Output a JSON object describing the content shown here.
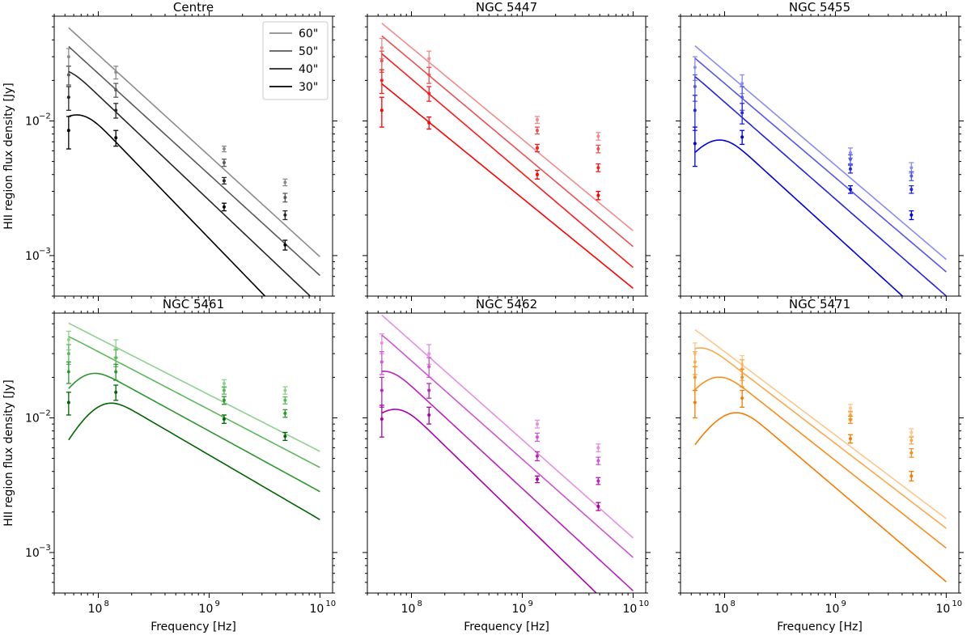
{
  "chart_data": {
    "type": "line",
    "scale": "log-log",
    "xlabel": "Frequency [Hz]",
    "ylabel": "HII region flux density [Jy]",
    "xlim": [
      40000000,
      13000000000
    ],
    "ylim": [
      0.0005,
      0.06
    ],
    "x_ticks": [
      {
        "value": 100000000,
        "mantissa": "10",
        "exp": "8"
      },
      {
        "value": 1000000000,
        "mantissa": "10",
        "exp": "9"
      },
      {
        "value": 10000000000,
        "mantissa": "10",
        "exp": "10"
      }
    ],
    "y_ticks": [
      {
        "value": 0.01,
        "mantissa": "10",
        "exp": "−2"
      },
      {
        "value": 0.001,
        "mantissa": "10",
        "exp": "−3"
      }
    ],
    "obs_frequencies": [
      54000000,
      144000000,
      1365000000,
      4850000000
    ],
    "legend": {
      "location": "upper right",
      "entries": [
        {
          "label": "60\"",
          "color": "#8c8c8c"
        },
        {
          "label": "50\"",
          "color": "#595959"
        },
        {
          "label": "40\"",
          "color": "#262626"
        },
        {
          "label": "30\"",
          "color": "#000000"
        }
      ]
    },
    "panels": [
      {
        "title": "Centre",
        "series": [
          {
            "aperture": "60\"",
            "color": "#8c8c8c",
            "points": [
              0.03,
              0.023,
              0.0062,
              0.0035
            ],
            "errors": [
              0.0045,
              0.0025,
              0.0003,
              0.0002
            ],
            "fit": {
              "s0": 0.031,
              "alpha": -0.75,
              "nu_peak": 0
            }
          },
          {
            "aperture": "50\"",
            "color": "#595959",
            "points": [
              0.022,
              0.017,
              0.0049,
              0.0027
            ],
            "errors": [
              0.0035,
              0.002,
              0.0003,
              0.0002
            ],
            "fit": {
              "s0": 0.0225,
              "alpha": -0.75,
              "nu_peak": 0
            }
          },
          {
            "aperture": "40\"",
            "color": "#262626",
            "points": [
              0.015,
              0.012,
              0.0036,
              0.002
            ],
            "errors": [
              0.003,
              0.0015,
              0.0002,
              0.00015
            ],
            "fit": {
              "s0": 0.0155,
              "alpha": -0.78,
              "nu_peak": 40000000
            }
          },
          {
            "aperture": "30\"",
            "color": "#000000",
            "points": [
              0.0085,
              0.0075,
              0.0023,
              0.0012
            ],
            "errors": [
              0.0023,
              0.001,
              0.00015,
              0.0001
            ],
            "fit": {
              "s0": 0.0095,
              "alpha": -0.85,
              "nu_peak": 60000000
            }
          }
        ]
      },
      {
        "title": "NGC 5447",
        "series": [
          {
            "aperture": "60\"",
            "color": "#f28b8b",
            "points": [
              0.035,
              0.029,
              0.0102,
              0.0077
            ],
            "errors": [
              0.006,
              0.004,
              0.0006,
              0.0005
            ],
            "fit": {
              "s0": 0.035,
              "alpha": -0.68,
              "nu_peak": 0
            }
          },
          {
            "aperture": "50\"",
            "color": "#ec5050",
            "points": [
              0.028,
              0.022,
              0.0085,
              0.0062
            ],
            "errors": [
              0.005,
              0.003,
              0.0005,
              0.0004
            ],
            "fit": {
              "s0": 0.028,
              "alpha": -0.69,
              "nu_peak": 0
            }
          },
          {
            "aperture": "40\"",
            "color": "#ff1a1a",
            "points": [
              0.02,
              0.016,
              0.0063,
              0.0045
            ],
            "errors": [
              0.004,
              0.002,
              0.0004,
              0.0003
            ],
            "fit": {
              "s0": 0.0205,
              "alpha": -0.7,
              "nu_peak": 0
            }
          },
          {
            "aperture": "30\"",
            "color": "#ff0000",
            "points": [
              0.012,
              0.0097,
              0.004,
              0.0028
            ],
            "errors": [
              0.003,
              0.001,
              0.0003,
              0.0002
            ],
            "fit": {
              "s0": 0.0125,
              "alpha": -0.67,
              "nu_peak": 0
            }
          }
        ]
      },
      {
        "title": "NGC 5455",
        "series": [
          {
            "aperture": "60\"",
            "color": "#8b8bf2",
            "points": [
              0.025,
              0.019,
              0.0058,
              0.0045
            ],
            "errors": [
              0.005,
              0.003,
              0.0005,
              0.0004
            ],
            "fit": {
              "s0": 0.0235,
              "alpha": -0.7,
              "nu_peak": 0
            }
          },
          {
            "aperture": "50\"",
            "color": "#5656ec",
            "points": [
              0.018,
              0.015,
              0.0052,
              0.0039
            ],
            "errors": [
              0.004,
              0.003,
              0.0004,
              0.0003
            ],
            "fit": {
              "s0": 0.019,
              "alpha": -0.7,
              "nu_peak": 0
            }
          },
          {
            "aperture": "40\"",
            "color": "#2424e8",
            "points": [
              0.012,
              0.0115,
              0.0044,
              0.0031
            ],
            "errors": [
              0.0035,
              0.002,
              0.0003,
              0.0002
            ],
            "fit": {
              "s0": 0.0138,
              "alpha": -0.72,
              "nu_peak": 30000000
            }
          },
          {
            "aperture": "30\"",
            "color": "#0000e0",
            "points": [
              0.0068,
              0.0076,
              0.0031,
              0.002
            ],
            "errors": [
              0.0022,
              0.0009,
              0.0002,
              0.00015
            ],
            "fit": {
              "s0": 0.008,
              "alpha": -0.75,
              "nu_peak": 80000000
            }
          }
        ]
      },
      {
        "title": "NGC 5461",
        "series": [
          {
            "aperture": "60\"",
            "color": "#8fd18f",
            "points": [
              0.038,
              0.033,
              0.018,
              0.016
            ],
            "errors": [
              0.006,
              0.005,
              0.0012,
              0.001
            ],
            "fit": {
              "s0": 0.039,
              "alpha": -0.42,
              "nu_peak": 0
            }
          },
          {
            "aperture": "50\"",
            "color": "#5cb85c",
            "points": [
              0.03,
              0.028,
              0.016,
              0.0135
            ],
            "errors": [
              0.005,
              0.004,
              0.001,
              0.0008
            ],
            "fit": {
              "s0": 0.031,
              "alpha": -0.43,
              "nu_peak": 30000000
            }
          },
          {
            "aperture": "40\"",
            "color": "#2e962e",
            "points": [
              0.022,
              0.022,
              0.0135,
              0.0108
            ],
            "errors": [
              0.004,
              0.003,
              0.0009,
              0.0007
            ],
            "fit": {
              "s0": 0.0225,
              "alpha": -0.45,
              "nu_peak": 70000000
            }
          },
          {
            "aperture": "30\"",
            "color": "#006400",
            "points": [
              0.013,
              0.0155,
              0.0098,
              0.0073
            ],
            "errors": [
              0.0025,
              0.002,
              0.0007,
              0.0005
            ],
            "fit": {
              "s0": 0.016,
              "alpha": -0.48,
              "nu_peak": 100000000
            }
          }
        ]
      },
      {
        "title": "NGC 5462",
        "series": [
          {
            "aperture": "60\"",
            "color": "#e58fe5",
            "points": [
              0.036,
              0.03,
              0.009,
              0.006
            ],
            "errors": [
              0.006,
              0.005,
              0.0006,
              0.0004
            ],
            "fit": {
              "s0": 0.037,
              "alpha": -0.73,
              "nu_peak": 0
            }
          },
          {
            "aperture": "50\"",
            "color": "#d055d0",
            "points": [
              0.026,
              0.024,
              0.0072,
              0.0048
            ],
            "errors": [
              0.005,
              0.004,
              0.0005,
              0.0003
            ],
            "fit": {
              "s0": 0.0265,
              "alpha": -0.73,
              "nu_peak": 30000000
            }
          },
          {
            "aperture": "40\"",
            "color": "#bb22bb",
            "points": [
              0.016,
              0.016,
              0.0052,
              0.0034
            ],
            "errors": [
              0.004,
              0.002,
              0.0004,
              0.0002
            ],
            "fit": {
              "s0": 0.0172,
              "alpha": -0.76,
              "nu_peak": 50000000
            }
          },
          {
            "aperture": "30\"",
            "color": "#aa00aa",
            "points": [
              0.0098,
              0.0105,
              0.0035,
              0.0022
            ],
            "errors": [
              0.0026,
              0.0015,
              0.0002,
              0.00015
            ],
            "fit": {
              "s0": 0.0108,
              "alpha": -0.8,
              "nu_peak": 65000000
            }
          }
        ]
      },
      {
        "title": "NGC 5471",
        "series": [
          {
            "aperture": "60\"",
            "color": "#fdc78a",
            "points": [
              0.03,
              0.025,
              0.0118,
              0.0078
            ],
            "errors": [
              0.006,
              0.004,
              0.0008,
              0.0005
            ],
            "fit": {
              "s0": 0.031,
              "alpha": -0.62,
              "nu_peak": 30000000
            }
          },
          {
            "aperture": "50\"",
            "color": "#fba84d",
            "points": [
              0.026,
              0.023,
              0.0105,
              0.0068
            ],
            "errors": [
              0.005,
              0.004,
              0.0007,
              0.0004
            ],
            "fit": {
              "s0": 0.0275,
              "alpha": -0.63,
              "nu_peak": 50000000
            }
          },
          {
            "aperture": "40\"",
            "color": "#f98e1e",
            "points": [
              0.02,
              0.02,
              0.0097,
              0.0055
            ],
            "errors": [
              0.004,
              0.003,
              0.0006,
              0.0004
            ],
            "fit": {
              "s0": 0.0215,
              "alpha": -0.65,
              "nu_peak": 75000000
            }
          },
          {
            "aperture": "30\"",
            "color": "#f57c00",
            "points": [
              0.013,
              0.014,
              0.007,
              0.0037
            ],
            "errors": [
              0.003,
              0.002,
              0.0005,
              0.0003
            ],
            "fit": {
              "s0": 0.0152,
              "alpha": -0.7,
              "nu_peak": 110000000
            }
          }
        ]
      }
    ]
  }
}
